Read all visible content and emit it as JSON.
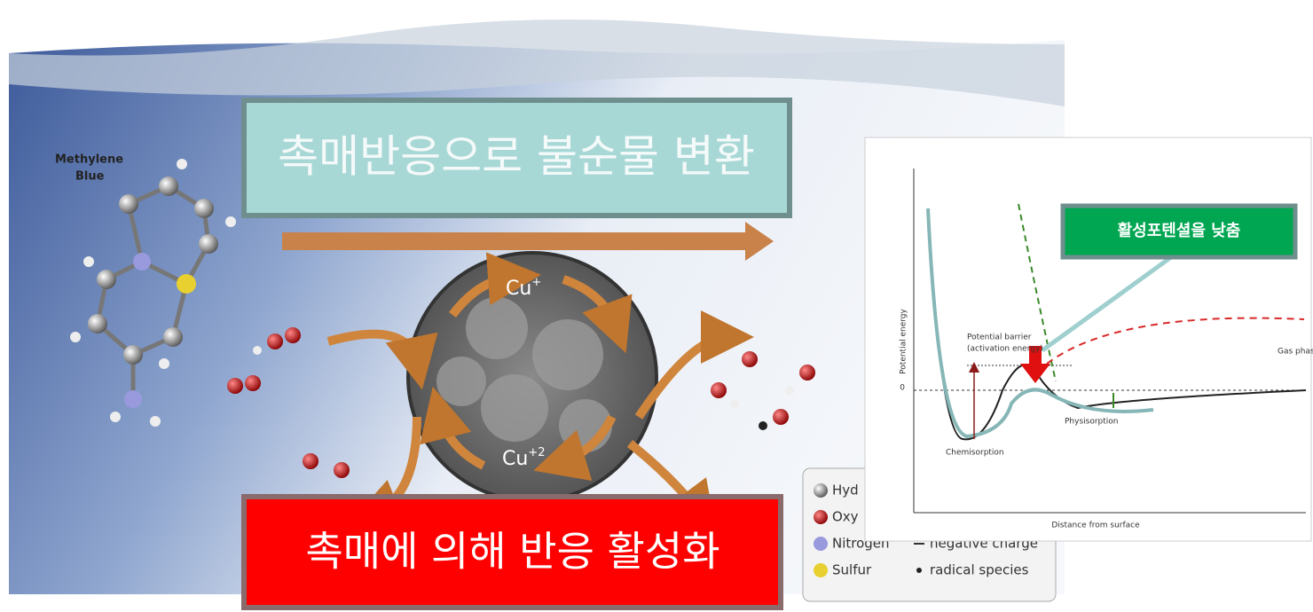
{
  "molecule_label": [
    "Methylene",
    "Blue"
  ],
  "top_box": {
    "text": "촉매반응으로 불순물 변환"
  },
  "bottom_box": {
    "text": "촉매에 의해 반응 활성화"
  },
  "catalyst": {
    "upper": {
      "base": "Cu",
      "sup": "+"
    },
    "lower": {
      "base": "Cu",
      "sup": "+2"
    }
  },
  "legend": {
    "items": [
      "Hyd",
      "Oxy",
      "Nitrogen",
      "Sulfur"
    ],
    "notes": [
      "negative charge",
      "radical species"
    ]
  },
  "inset": {
    "callout": "활성포텐셜을 낮춤",
    "y_label": "Potential energy",
    "x_label": "Distance from surface",
    "zero": "0",
    "barrier": [
      "Potential barrier",
      "(activation energy)"
    ],
    "gas": "Gas phase",
    "physisorption": "Physisorption",
    "chemisorption": "Chemisorption"
  }
}
